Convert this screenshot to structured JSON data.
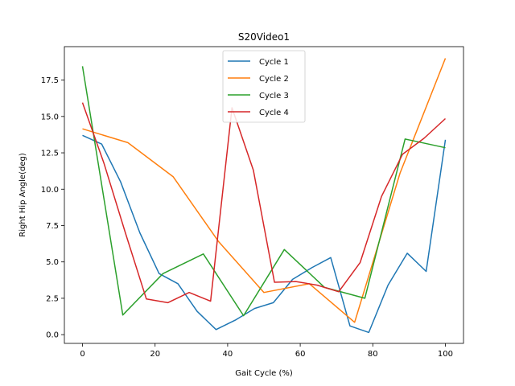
{
  "chart_data": {
    "type": "line",
    "title": "S20Video1",
    "xlabel": "Gait Cycle (%)",
    "ylabel": "Right Hip Angle(deg)",
    "xlim": [
      -5,
      105
    ],
    "ylim": [
      -0.6,
      19.8
    ],
    "xticks": [
      0,
      20,
      40,
      60,
      80,
      100
    ],
    "yticks": [
      0.0,
      2.5,
      5.0,
      7.5,
      10.0,
      12.5,
      15.0,
      17.5
    ],
    "xtick_labels": [
      "0",
      "20",
      "40",
      "60",
      "80",
      "100"
    ],
    "ytick_labels": [
      "0.0",
      "2.5",
      "5.0",
      "7.5",
      "10.0",
      "12.5",
      "15.0",
      "17.5"
    ],
    "grid": false,
    "legend_position": "top-center",
    "series": [
      {
        "name": "Cycle 1",
        "color": "#1f77b4",
        "x": [
          0,
          5.3,
          10.5,
          15.8,
          21.1,
          26.3,
          31.6,
          36.8,
          42.1,
          47.4,
          52.6,
          57.9,
          63.2,
          68.4,
          73.7,
          78.9,
          84.2,
          89.5,
          94.7,
          100
        ],
        "y": [
          13.7,
          13.1,
          10.5,
          7.0,
          4.2,
          3.5,
          1.6,
          0.35,
          1.0,
          1.8,
          2.2,
          3.8,
          4.6,
          5.3,
          0.6,
          0.15,
          3.4,
          5.6,
          4.35,
          13.4
        ]
      },
      {
        "name": "Cycle 2",
        "color": "#ff7f0e",
        "x": [
          0,
          12.5,
          25,
          37.5,
          50,
          62.5,
          75,
          87.5,
          100
        ],
        "y": [
          14.15,
          13.2,
          10.85,
          6.4,
          2.9,
          3.5,
          0.85,
          11.1,
          19.0
        ]
      },
      {
        "name": "Cycle 3",
        "color": "#2ca02c",
        "x": [
          0,
          11.1,
          22.2,
          33.3,
          44.4,
          55.6,
          66.7,
          77.8,
          88.9,
          100
        ],
        "y": [
          18.45,
          1.35,
          4.2,
          5.55,
          1.3,
          5.85,
          3.25,
          2.5,
          13.45,
          12.85
        ]
      },
      {
        "name": "Cycle 4",
        "color": "#d62728",
        "x": [
          0,
          5.9,
          11.8,
          17.6,
          23.5,
          29.4,
          35.3,
          41.2,
          47.1,
          52.9,
          58.8,
          64.7,
          70.6,
          76.5,
          82.4,
          88.2,
          94.1,
          100
        ],
        "y": [
          15.95,
          11.8,
          7.0,
          2.45,
          2.2,
          2.9,
          2.3,
          15.6,
          11.3,
          3.6,
          3.65,
          3.4,
          2.95,
          4.95,
          9.5,
          12.4,
          13.5,
          14.85
        ]
      }
    ]
  }
}
